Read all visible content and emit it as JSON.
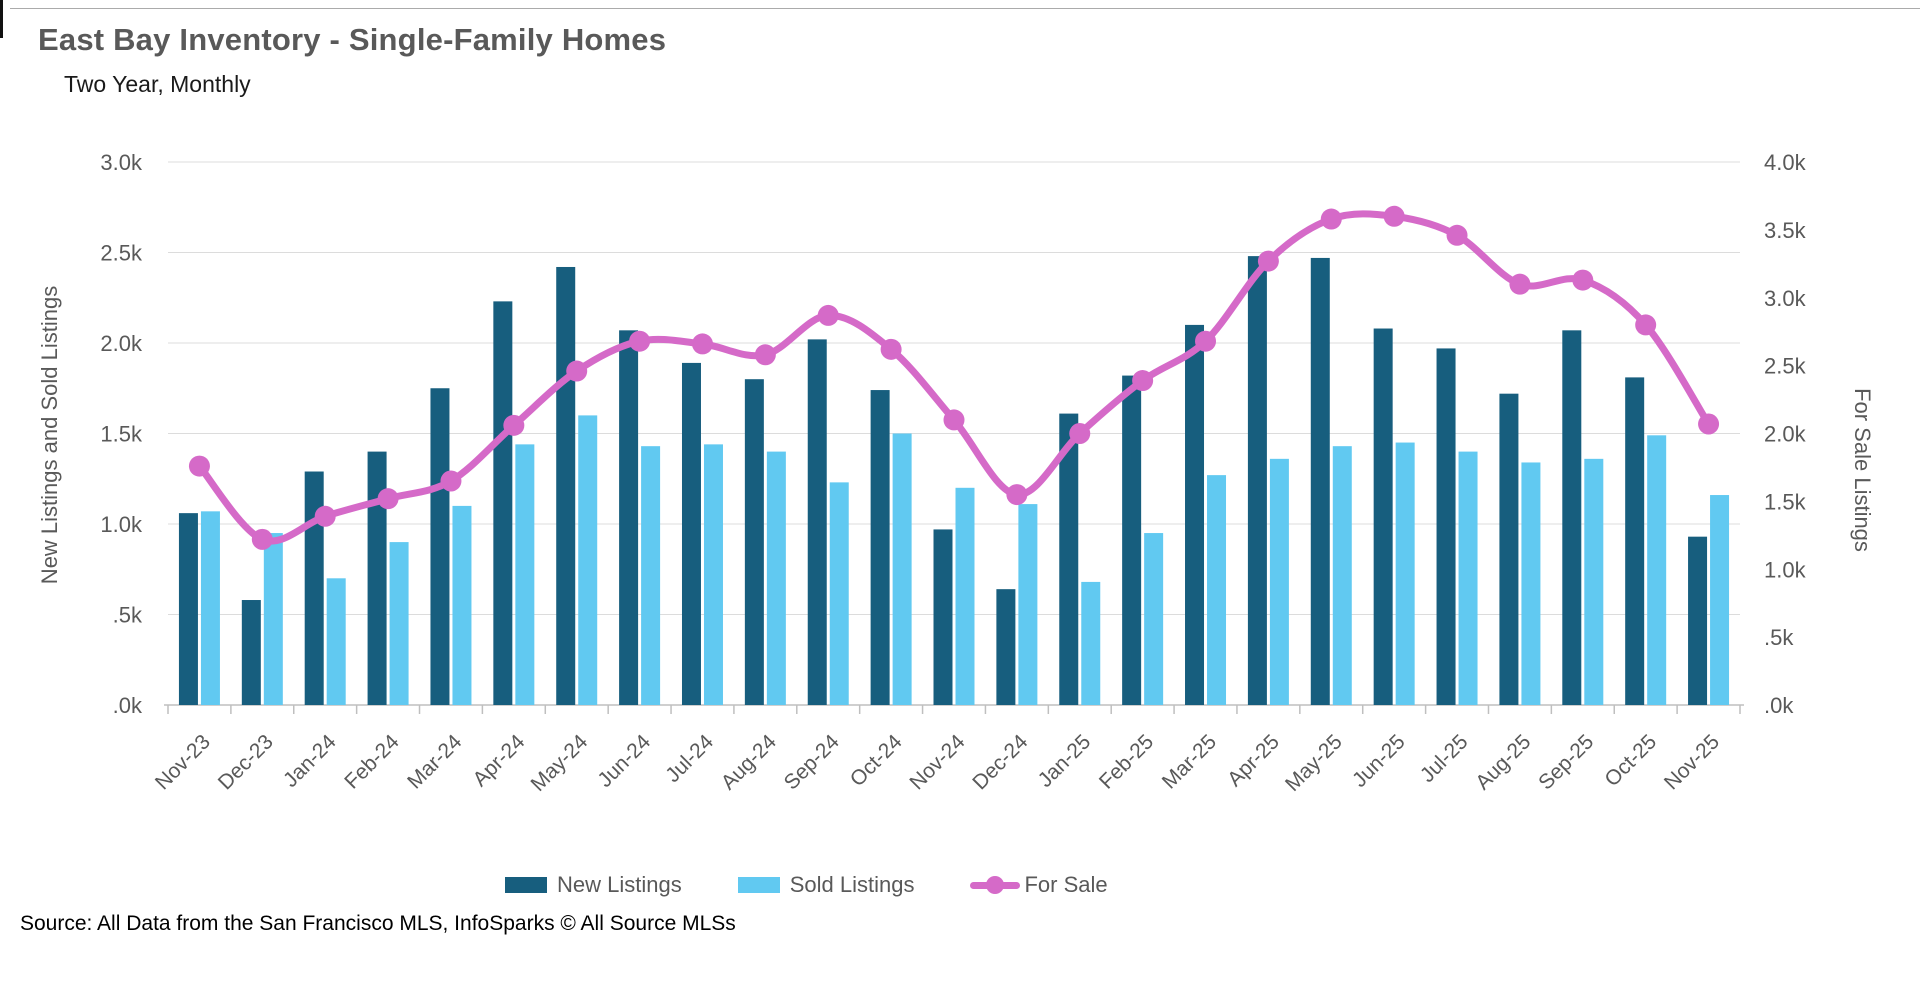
{
  "header": {
    "title": "East Bay Inventory - Single-Family Homes",
    "subtitle": "Two Year, Monthly"
  },
  "source": "Source: All Data from the San Francisco MLS, InfoSparks © All Source MLSs",
  "legend": {
    "new_listings": "New Listings",
    "sold_listings": "Sold Listings",
    "for_sale": "For Sale"
  },
  "colors": {
    "new_listings": "#175E7E",
    "sold_listings": "#61C9F1",
    "for_sale": "#D56AC8",
    "gridline": "#DCDCDC",
    "axis_line": "#BFBFBF",
    "tick_text": "#595959"
  },
  "chart_data": {
    "type": "bar+line",
    "title": "East Bay Inventory - Single-Family Homes",
    "subtitle": "Two Year, Monthly",
    "categories": [
      "Nov-23",
      "Dec-23",
      "Jan-24",
      "Feb-24",
      "Mar-24",
      "Apr-24",
      "May-24",
      "Jun-24",
      "Jul-24",
      "Aug-24",
      "Sep-24",
      "Oct-24",
      "Nov-24",
      "Dec-24",
      "Jan-25",
      "Feb-25",
      "Mar-25",
      "Apr-25",
      "May-25",
      "Jun-25",
      "Jul-25",
      "Aug-25",
      "Sep-25",
      "Oct-25",
      "Nov-25"
    ],
    "series": [
      {
        "name": "New Listings",
        "type": "bar",
        "axis": "left",
        "values": [
          1060,
          580,
          1290,
          1400,
          1750,
          2230,
          2420,
          2070,
          1890,
          1800,
          2020,
          1740,
          970,
          640,
          1610,
          1820,
          2100,
          2480,
          2470,
          2080,
          1970,
          1720,
          2070,
          1810,
          930
        ]
      },
      {
        "name": "Sold Listings",
        "type": "bar",
        "axis": "left",
        "values": [
          1070,
          950,
          700,
          900,
          1100,
          1440,
          1600,
          1430,
          1440,
          1400,
          1230,
          1500,
          1200,
          1110,
          680,
          950,
          1270,
          1360,
          1430,
          1450,
          1400,
          1340,
          1360,
          1490,
          1160
        ]
      },
      {
        "name": "For Sale",
        "type": "line",
        "axis": "right",
        "values": [
          1760,
          1220,
          1390,
          1520,
          1650,
          2060,
          2460,
          2680,
          2660,
          2580,
          2870,
          2620,
          2100,
          1550,
          2000,
          2390,
          2680,
          3270,
          3580,
          3600,
          3460,
          3100,
          3130,
          2800,
          2070
        ]
      }
    ],
    "left_axis": {
      "title": "New Listings and Sold Listings",
      "min": 0,
      "max": 3000,
      "tick_labels": [
        "3.0k",
        "2.5k",
        "2.0k",
        "1.5k",
        "1.0k",
        ".5k",
        ".0k"
      ]
    },
    "right_axis": {
      "title": "For Sale Listings",
      "min": 0,
      "max": 4000,
      "tick_labels": [
        "4.0k",
        "3.5k",
        "3.0k",
        "2.5k",
        "2.0k",
        "1.5k",
        "1.0k",
        ".5k",
        ".0k"
      ]
    },
    "grid": true,
    "legend_position": "bottom"
  }
}
